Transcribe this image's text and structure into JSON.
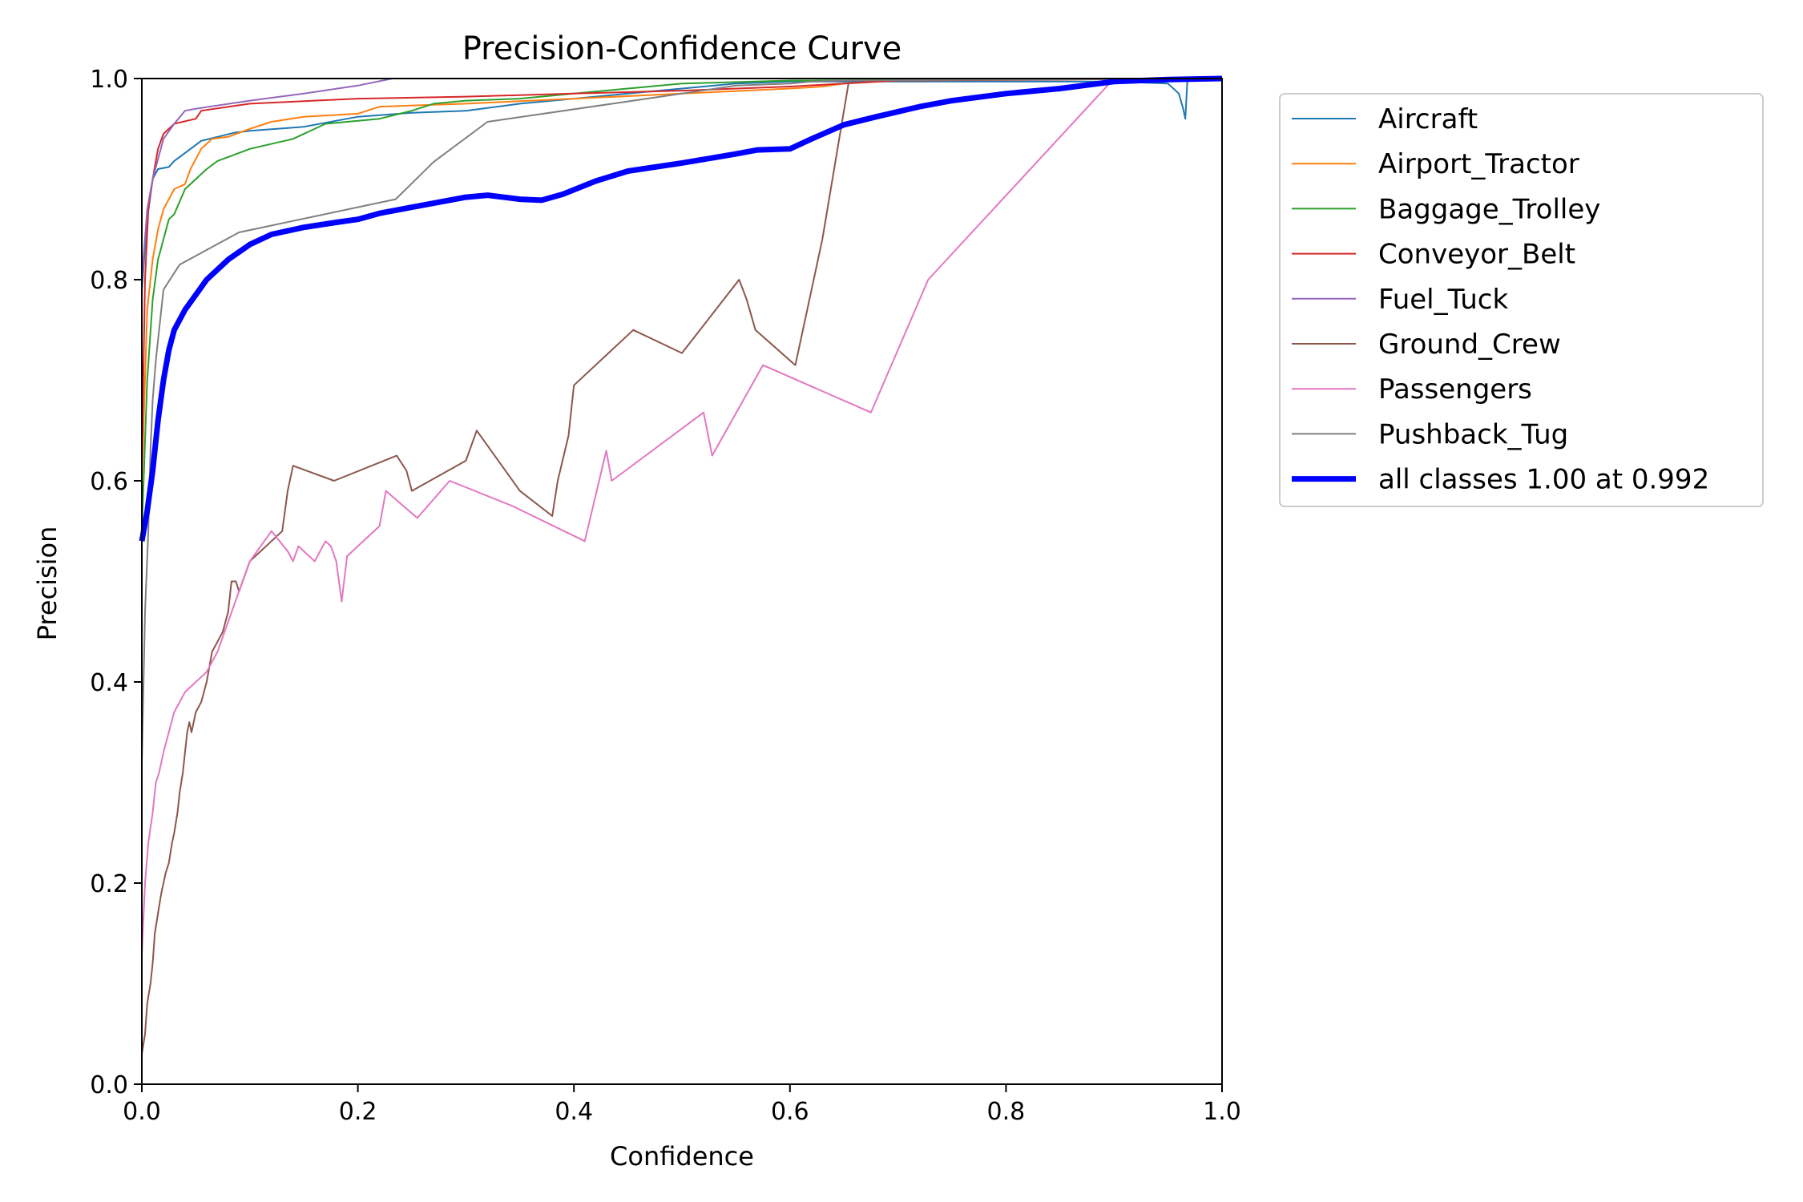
{
  "chart_data": {
    "type": "line",
    "title": "Precision-Confidence Curve",
    "xlabel": "Confidence",
    "ylabel": "Precision",
    "xlim": [
      0,
      1
    ],
    "ylim": [
      0,
      1
    ],
    "xticks": [
      "0.0",
      "0.2",
      "0.4",
      "0.6",
      "0.8",
      "1.0"
    ],
    "yticks": [
      "0.0",
      "0.2",
      "0.4",
      "0.6",
      "0.8",
      "1.0"
    ],
    "grid": false,
    "legend_position": "outside-right",
    "series": [
      {
        "name": "Aircraft",
        "color": "#1f77b4",
        "width": 2,
        "points": [
          [
            0,
            0.79
          ],
          [
            0.005,
            0.86
          ],
          [
            0.01,
            0.9
          ],
          [
            0.015,
            0.91
          ],
          [
            0.025,
            0.912
          ],
          [
            0.03,
            0.918
          ],
          [
            0.035,
            0.922
          ],
          [
            0.045,
            0.93
          ],
          [
            0.055,
            0.938
          ],
          [
            0.07,
            0.942
          ],
          [
            0.085,
            0.946
          ],
          [
            0.1,
            0.948
          ],
          [
            0.15,
            0.952
          ],
          [
            0.2,
            0.962
          ],
          [
            0.25,
            0.966
          ],
          [
            0.3,
            0.968
          ],
          [
            0.35,
            0.975
          ],
          [
            0.4,
            0.98
          ],
          [
            0.45,
            0.985
          ],
          [
            0.5,
            0.99
          ],
          [
            0.55,
            0.995
          ],
          [
            0.6,
            0.997
          ],
          [
            0.7,
            0.997
          ],
          [
            0.8,
            0.997
          ],
          [
            0.9,
            0.997
          ],
          [
            0.95,
            0.995
          ],
          [
            0.96,
            0.985
          ],
          [
            0.964,
            0.97
          ],
          [
            0.966,
            0.96
          ],
          [
            0.968,
            1.0
          ],
          [
            1.0,
            1.0
          ]
        ]
      },
      {
        "name": "Airport_Tractor",
        "color": "#ff7f0e",
        "width": 2,
        "points": [
          [
            0,
            0.6
          ],
          [
            0.005,
            0.77
          ],
          [
            0.01,
            0.82
          ],
          [
            0.015,
            0.85
          ],
          [
            0.02,
            0.87
          ],
          [
            0.025,
            0.88
          ],
          [
            0.03,
            0.89
          ],
          [
            0.04,
            0.895
          ],
          [
            0.045,
            0.91
          ],
          [
            0.055,
            0.93
          ],
          [
            0.065,
            0.94
          ],
          [
            0.08,
            0.942
          ],
          [
            0.1,
            0.95
          ],
          [
            0.12,
            0.957
          ],
          [
            0.15,
            0.962
          ],
          [
            0.2,
            0.965
          ],
          [
            0.22,
            0.972
          ],
          [
            0.3,
            0.975
          ],
          [
            0.4,
            0.98
          ],
          [
            0.5,
            0.985
          ],
          [
            0.6,
            0.99
          ],
          [
            0.63,
            0.992
          ],
          [
            0.65,
            0.995
          ],
          [
            0.7,
            0.998
          ],
          [
            1.0,
            1.0
          ]
        ]
      },
      {
        "name": "Baggage_Trolley",
        "color": "#2ca02c",
        "width": 2,
        "points": [
          [
            0,
            0.55
          ],
          [
            0.005,
            0.7
          ],
          [
            0.01,
            0.78
          ],
          [
            0.015,
            0.82
          ],
          [
            0.02,
            0.84
          ],
          [
            0.025,
            0.86
          ],
          [
            0.03,
            0.865
          ],
          [
            0.04,
            0.89
          ],
          [
            0.05,
            0.9
          ],
          [
            0.06,
            0.91
          ],
          [
            0.07,
            0.918
          ],
          [
            0.08,
            0.922
          ],
          [
            0.1,
            0.93
          ],
          [
            0.14,
            0.94
          ],
          [
            0.17,
            0.955
          ],
          [
            0.2,
            0.958
          ],
          [
            0.22,
            0.96
          ],
          [
            0.25,
            0.968
          ],
          [
            0.27,
            0.975
          ],
          [
            0.3,
            0.978
          ],
          [
            0.35,
            0.98
          ],
          [
            0.4,
            0.985
          ],
          [
            0.45,
            0.99
          ],
          [
            0.5,
            0.995
          ],
          [
            0.6,
            0.998
          ],
          [
            1.0,
            1.0
          ]
        ]
      },
      {
        "name": "Conveyor_Belt",
        "color": "#d62728",
        "width": 2,
        "points": [
          [
            0,
            0.62
          ],
          [
            0.003,
            0.8
          ],
          [
            0.006,
            0.87
          ],
          [
            0.01,
            0.9
          ],
          [
            0.015,
            0.93
          ],
          [
            0.02,
            0.945
          ],
          [
            0.03,
            0.955
          ],
          [
            0.05,
            0.96
          ],
          [
            0.055,
            0.968
          ],
          [
            0.1,
            0.975
          ],
          [
            0.2,
            0.98
          ],
          [
            0.3,
            0.982
          ],
          [
            0.4,
            0.985
          ],
          [
            0.5,
            0.988
          ],
          [
            0.6,
            0.992
          ],
          [
            0.65,
            0.995
          ],
          [
            0.7,
            0.998
          ],
          [
            1.0,
            1.0
          ]
        ]
      },
      {
        "name": "Fuel_Tuck",
        "color": "#9467bd",
        "width": 2,
        "points": [
          [
            0,
            0.8
          ],
          [
            0.005,
            0.87
          ],
          [
            0.01,
            0.9
          ],
          [
            0.02,
            0.94
          ],
          [
            0.03,
            0.955
          ],
          [
            0.04,
            0.968
          ],
          [
            0.05,
            0.97
          ],
          [
            0.1,
            0.978
          ],
          [
            0.15,
            0.985
          ],
          [
            0.2,
            0.993
          ],
          [
            0.232,
            1.0
          ],
          [
            1.0,
            1.0
          ]
        ]
      },
      {
        "name": "Ground_Crew",
        "color": "#8c564b",
        "width": 2,
        "points": [
          [
            0,
            0.03
          ],
          [
            0.003,
            0.05
          ],
          [
            0.005,
            0.08
          ],
          [
            0.008,
            0.1
          ],
          [
            0.01,
            0.12
          ],
          [
            0.012,
            0.15
          ],
          [
            0.015,
            0.17
          ],
          [
            0.018,
            0.19
          ],
          [
            0.02,
            0.2
          ],
          [
            0.022,
            0.21
          ],
          [
            0.025,
            0.22
          ],
          [
            0.028,
            0.24
          ],
          [
            0.03,
            0.25
          ],
          [
            0.033,
            0.27
          ],
          [
            0.035,
            0.29
          ],
          [
            0.038,
            0.31
          ],
          [
            0.04,
            0.33
          ],
          [
            0.042,
            0.35
          ],
          [
            0.044,
            0.36
          ],
          [
            0.046,
            0.35
          ],
          [
            0.05,
            0.37
          ],
          [
            0.055,
            0.38
          ],
          [
            0.06,
            0.4
          ],
          [
            0.065,
            0.43
          ],
          [
            0.07,
            0.44
          ],
          [
            0.075,
            0.45
          ],
          [
            0.08,
            0.47
          ],
          [
            0.083,
            0.5
          ],
          [
            0.087,
            0.5
          ],
          [
            0.09,
            0.49
          ],
          [
            0.1,
            0.52
          ],
          [
            0.12,
            0.54
          ],
          [
            0.13,
            0.55
          ],
          [
            0.135,
            0.59
          ],
          [
            0.14,
            0.615
          ],
          [
            0.178,
            0.6
          ],
          [
            0.236,
            0.625
          ],
          [
            0.245,
            0.61
          ],
          [
            0.25,
            0.59
          ],
          [
            0.3,
            0.62
          ],
          [
            0.31,
            0.65
          ],
          [
            0.35,
            0.59
          ],
          [
            0.38,
            0.565
          ],
          [
            0.385,
            0.6
          ],
          [
            0.395,
            0.645
          ],
          [
            0.4,
            0.695
          ],
          [
            0.455,
            0.75
          ],
          [
            0.5,
            0.727
          ],
          [
            0.553,
            0.8
          ],
          [
            0.56,
            0.78
          ],
          [
            0.568,
            0.75
          ],
          [
            0.605,
            0.715
          ],
          [
            0.63,
            0.84
          ],
          [
            0.655,
            1.0
          ],
          [
            1.0,
            1.0
          ]
        ]
      },
      {
        "name": "Passengers",
        "color": "#e377c2",
        "width": 2,
        "points": [
          [
            0,
            0.13
          ],
          [
            0.003,
            0.2
          ],
          [
            0.006,
            0.24
          ],
          [
            0.01,
            0.27
          ],
          [
            0.013,
            0.3
          ],
          [
            0.016,
            0.31
          ],
          [
            0.02,
            0.33
          ],
          [
            0.025,
            0.35
          ],
          [
            0.03,
            0.37
          ],
          [
            0.035,
            0.38
          ],
          [
            0.04,
            0.39
          ],
          [
            0.045,
            0.395
          ],
          [
            0.05,
            0.4
          ],
          [
            0.06,
            0.41
          ],
          [
            0.065,
            0.42
          ],
          [
            0.07,
            0.43
          ],
          [
            0.08,
            0.46
          ],
          [
            0.09,
            0.49
          ],
          [
            0.1,
            0.52
          ],
          [
            0.12,
            0.55
          ],
          [
            0.135,
            0.53
          ],
          [
            0.14,
            0.52
          ],
          [
            0.145,
            0.535
          ],
          [
            0.15,
            0.53
          ],
          [
            0.16,
            0.52
          ],
          [
            0.17,
            0.54
          ],
          [
            0.175,
            0.535
          ],
          [
            0.18,
            0.52
          ],
          [
            0.185,
            0.48
          ],
          [
            0.19,
            0.525
          ],
          [
            0.22,
            0.555
          ],
          [
            0.226,
            0.59
          ],
          [
            0.255,
            0.563
          ],
          [
            0.285,
            0.6
          ],
          [
            0.343,
            0.575
          ],
          [
            0.41,
            0.54
          ],
          [
            0.43,
            0.63
          ],
          [
            0.435,
            0.6
          ],
          [
            0.52,
            0.668
          ],
          [
            0.528,
            0.625
          ],
          [
            0.575,
            0.715
          ],
          [
            0.675,
            0.668
          ],
          [
            0.728,
            0.8
          ],
          [
            0.9,
            1.0
          ],
          [
            1.0,
            1.0
          ]
        ]
      },
      {
        "name": "Pushback_Tug",
        "color": "#7f7f7f",
        "width": 2,
        "points": [
          [
            0,
            0.32
          ],
          [
            0.003,
            0.47
          ],
          [
            0.006,
            0.55
          ],
          [
            0.008,
            0.63
          ],
          [
            0.01,
            0.68
          ],
          [
            0.013,
            0.72
          ],
          [
            0.02,
            0.79
          ],
          [
            0.035,
            0.815
          ],
          [
            0.09,
            0.847
          ],
          [
            0.235,
            0.88
          ],
          [
            0.27,
            0.917
          ],
          [
            0.32,
            0.957
          ],
          [
            0.5,
            0.985
          ],
          [
            0.55,
            0.993
          ],
          [
            0.6,
            0.995
          ],
          [
            0.62,
            0.997
          ],
          [
            0.65,
            0.998
          ],
          [
            1.0,
            1.0
          ]
        ]
      },
      {
        "name": "all classes 1.00 at 0.992",
        "color": "#0000ff",
        "width": 7,
        "points": [
          [
            0,
            0.54
          ],
          [
            0.005,
            0.57
          ],
          [
            0.01,
            0.61
          ],
          [
            0.015,
            0.66
          ],
          [
            0.02,
            0.7
          ],
          [
            0.025,
            0.73
          ],
          [
            0.03,
            0.75
          ],
          [
            0.04,
            0.77
          ],
          [
            0.05,
            0.785
          ],
          [
            0.06,
            0.8
          ],
          [
            0.07,
            0.81
          ],
          [
            0.08,
            0.82
          ],
          [
            0.1,
            0.835
          ],
          [
            0.12,
            0.845
          ],
          [
            0.15,
            0.852
          ],
          [
            0.18,
            0.857
          ],
          [
            0.2,
            0.86
          ],
          [
            0.22,
            0.866
          ],
          [
            0.25,
            0.872
          ],
          [
            0.27,
            0.876
          ],
          [
            0.3,
            0.882
          ],
          [
            0.32,
            0.884
          ],
          [
            0.35,
            0.88
          ],
          [
            0.37,
            0.879
          ],
          [
            0.39,
            0.885
          ],
          [
            0.42,
            0.898
          ],
          [
            0.45,
            0.908
          ],
          [
            0.5,
            0.916
          ],
          [
            0.55,
            0.925
          ],
          [
            0.57,
            0.929
          ],
          [
            0.6,
            0.93
          ],
          [
            0.62,
            0.94
          ],
          [
            0.65,
            0.954
          ],
          [
            0.68,
            0.962
          ],
          [
            0.72,
            0.972
          ],
          [
            0.75,
            0.978
          ],
          [
            0.8,
            0.985
          ],
          [
            0.85,
            0.99
          ],
          [
            0.9,
            0.997
          ],
          [
            0.95,
            0.999
          ],
          [
            1.0,
            1.0
          ]
        ]
      }
    ]
  }
}
